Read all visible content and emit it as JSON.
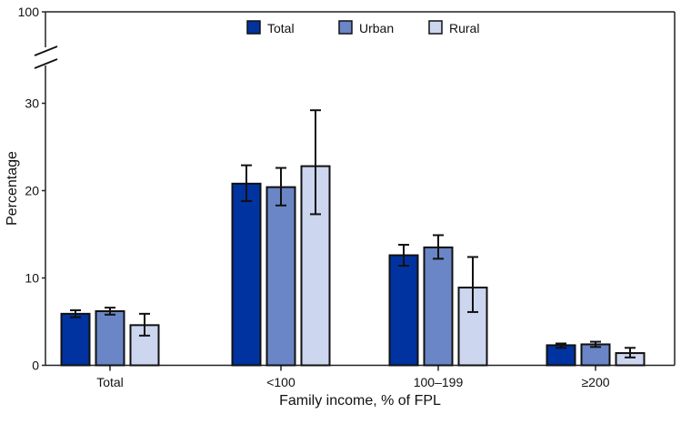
{
  "chart_data": {
    "type": "bar",
    "xlabel": "Family income, % of FPL",
    "ylabel": "Percentage",
    "categories": [
      "Total",
      "<100",
      "100–199",
      "≥200"
    ],
    "yticks": [
      0,
      10,
      20,
      30,
      100
    ],
    "ylim": [
      0,
      100
    ],
    "axis_break": [
      31,
      99
    ],
    "grid": false,
    "legend_position": "top-center",
    "series": [
      {
        "name": "Total",
        "color": "#0033a0",
        "values": [
          5.9,
          20.8,
          12.6,
          2.3
        ],
        "ci_low": [
          5.5,
          18.8,
          11.4,
          2.0
        ],
        "ci_high": [
          6.3,
          22.9,
          13.8,
          2.5
        ]
      },
      {
        "name": "Urban",
        "color": "#6a86c6",
        "values": [
          6.2,
          20.4,
          13.5,
          2.4
        ],
        "ci_low": [
          5.8,
          18.3,
          12.2,
          2.1
        ],
        "ci_high": [
          6.6,
          22.6,
          14.9,
          2.7
        ]
      },
      {
        "name": "Rural",
        "color": "#ccd6ee",
        "values": [
          4.6,
          22.8,
          8.9,
          1.4
        ],
        "ci_low": [
          3.4,
          17.3,
          6.1,
          0.9
        ],
        "ci_high": [
          5.9,
          29.2,
          12.4,
          2.0
        ]
      }
    ]
  }
}
